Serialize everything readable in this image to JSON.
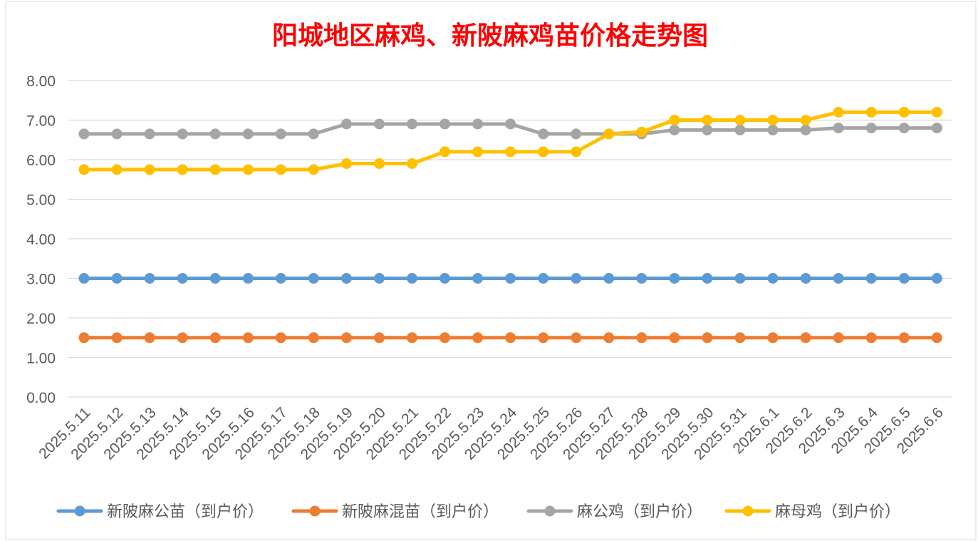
{
  "chart_data": {
    "type": "line",
    "title": "阳城地区麻鸡、新陂麻鸡苗价格走势图",
    "xlabel": "",
    "ylabel": "",
    "ylim": [
      0,
      8
    ],
    "y_ticks": [
      "0.00",
      "1.00",
      "2.00",
      "3.00",
      "4.00",
      "5.00",
      "6.00",
      "7.00",
      "8.00"
    ],
    "grid": "horizontal",
    "legend_position": "bottom",
    "categories": [
      "2025.5.11",
      "2025.5.12",
      "2025.5.13",
      "2025.5.14",
      "2025.5.15",
      "2025.5.16",
      "2025.5.17",
      "2025.5.18",
      "2025.5.19",
      "2025.5.20",
      "2025.5.21",
      "2025.5.22",
      "2025.5.23",
      "2025.5.24",
      "2025.5.25",
      "2025.5.26",
      "2025.5.27",
      "2025.5.28",
      "2025.5.29",
      "2025.5.30",
      "2025.5.31",
      "2025.6.1",
      "2025.6.2",
      "2025.6.3",
      "2025.6.4",
      "2025.6.5",
      "2025.6.6"
    ],
    "series": [
      {
        "name": "新陂麻公苗（到户价）",
        "color": "#5b9bd5",
        "values": [
          3,
          3,
          3,
          3,
          3,
          3,
          3,
          3,
          3,
          3,
          3,
          3,
          3,
          3,
          3,
          3,
          3,
          3,
          3,
          3,
          3,
          3,
          3,
          3,
          3,
          3,
          3
        ]
      },
      {
        "name": "新陂麻混苗（到户价）",
        "color": "#ed7d31",
        "values": [
          1.5,
          1.5,
          1.5,
          1.5,
          1.5,
          1.5,
          1.5,
          1.5,
          1.5,
          1.5,
          1.5,
          1.5,
          1.5,
          1.5,
          1.5,
          1.5,
          1.5,
          1.5,
          1.5,
          1.5,
          1.5,
          1.5,
          1.5,
          1.5,
          1.5,
          1.5,
          1.5
        ]
      },
      {
        "name": "麻公鸡（到户价）",
        "color": "#a5a5a5",
        "values": [
          6.65,
          6.65,
          6.65,
          6.65,
          6.65,
          6.65,
          6.65,
          6.65,
          6.9,
          6.9,
          6.9,
          6.9,
          6.9,
          6.9,
          6.65,
          6.65,
          6.65,
          6.65,
          6.75,
          6.75,
          6.75,
          6.75,
          6.75,
          6.8,
          6.8,
          6.8,
          6.8
        ]
      },
      {
        "name": "麻母鸡（到户价）",
        "color": "#ffc000",
        "values": [
          5.75,
          5.75,
          5.75,
          5.75,
          5.75,
          5.75,
          5.75,
          5.75,
          5.9,
          5.9,
          5.9,
          6.2,
          6.2,
          6.2,
          6.2,
          6.2,
          6.65,
          6.7,
          7.0,
          7.0,
          7.0,
          7.0,
          7.0,
          7.2,
          7.2,
          7.2,
          7.2
        ]
      }
    ],
    "colors": {
      "title": "#ff0000",
      "axis_text": "#595959",
      "legend_text": "#595959",
      "gridline": "#d9d9d9",
      "chart_border": "#d9d9d9",
      "background_grid": "#e4e4e4"
    }
  }
}
